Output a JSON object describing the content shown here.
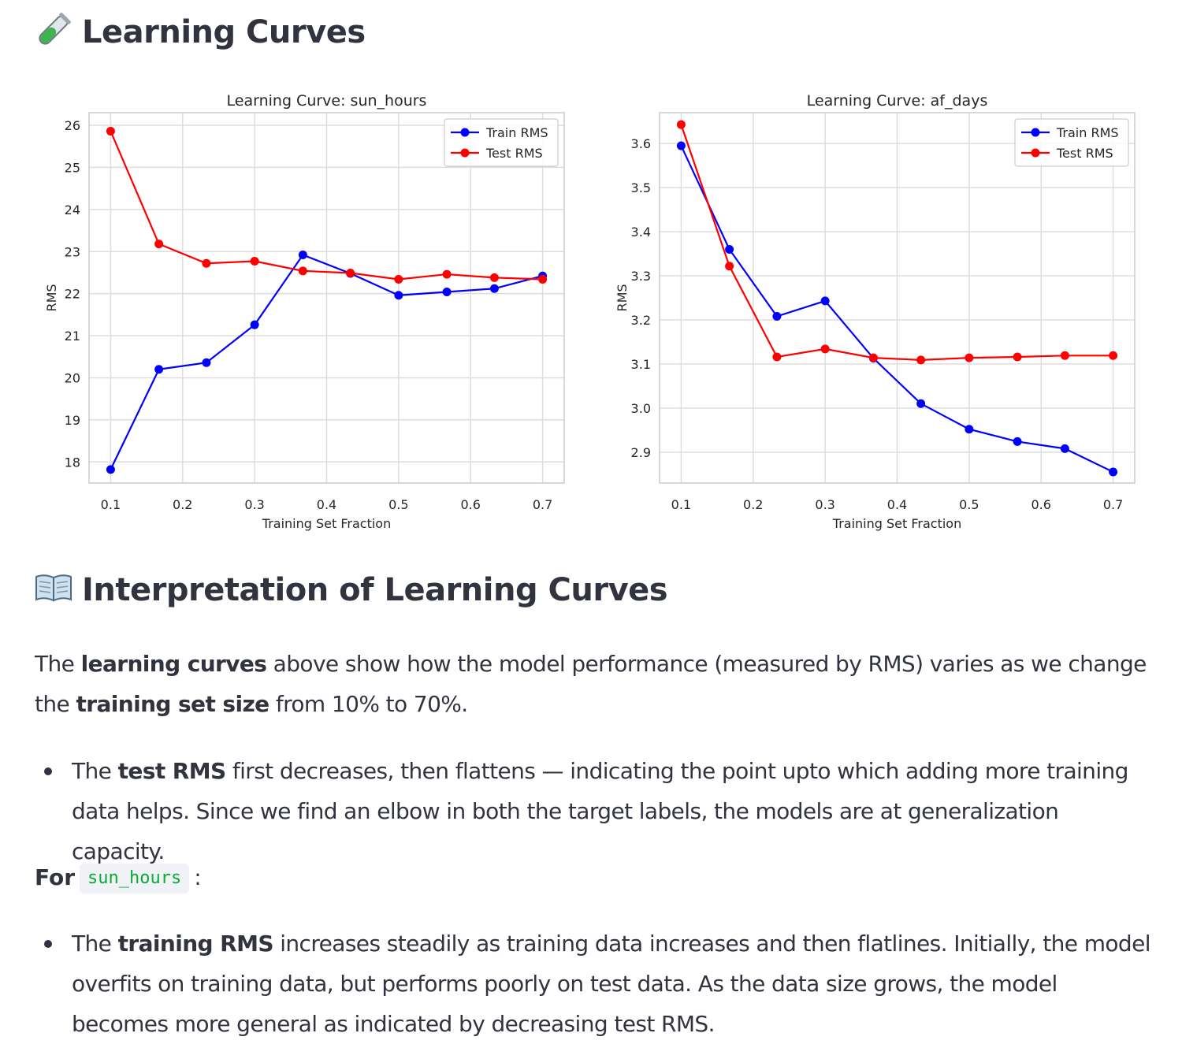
{
  "header": {
    "title": "Learning Curves",
    "title_icon": "test-tube-icon"
  },
  "chart_data": [
    {
      "type": "line",
      "title": "Learning Curve: sun_hours",
      "xlabel": "Training Set Fraction",
      "ylabel": "RMS",
      "xlim": [
        0.07,
        0.73
      ],
      "ylim": [
        17.5,
        26.3
      ],
      "xticks": [
        0.1,
        0.2,
        0.3,
        0.4,
        0.5,
        0.6,
        0.7
      ],
      "xtick_labels": [
        "0.1",
        "0.2",
        "0.3",
        "0.4",
        "0.5",
        "0.6",
        "0.7"
      ],
      "yticks": [
        18,
        19,
        20,
        21,
        22,
        23,
        24,
        25,
        26
      ],
      "ytick_labels": [
        "18",
        "19",
        "20",
        "21",
        "22",
        "23",
        "24",
        "25",
        "26"
      ],
      "grid": true,
      "legend": "top-right",
      "x": [
        0.1,
        0.167,
        0.233,
        0.3,
        0.367,
        0.433,
        0.5,
        0.567,
        0.633,
        0.7
      ],
      "series": [
        {
          "name": "Train RMS",
          "color": "#0000ff",
          "values": [
            17.82,
            20.2,
            20.36,
            21.26,
            22.92,
            22.48,
            21.96,
            22.04,
            22.12,
            22.42
          ]
        },
        {
          "name": "Test RMS",
          "color": "#ff0000",
          "values": [
            25.86,
            23.18,
            22.72,
            22.77,
            22.54,
            22.49,
            22.34,
            22.46,
            22.38,
            22.34
          ]
        }
      ]
    },
    {
      "type": "line",
      "title": "Learning Curve: af_days",
      "xlabel": "Training Set Fraction",
      "ylabel": "RMS",
      "xlim": [
        0.07,
        0.73
      ],
      "ylim": [
        2.83,
        3.67
      ],
      "xticks": [
        0.1,
        0.2,
        0.3,
        0.4,
        0.5,
        0.6,
        0.7
      ],
      "xtick_labels": [
        "0.1",
        "0.2",
        "0.3",
        "0.4",
        "0.5",
        "0.6",
        "0.7"
      ],
      "yticks": [
        2.9,
        3.0,
        3.1,
        3.2,
        3.3,
        3.4,
        3.5,
        3.6
      ],
      "ytick_labels": [
        "2.9",
        "3.0",
        "3.1",
        "3.2",
        "3.3",
        "3.4",
        "3.5",
        "3.6"
      ],
      "grid": true,
      "legend": "top-right",
      "x": [
        0.1,
        0.167,
        0.233,
        0.3,
        0.367,
        0.433,
        0.5,
        0.567,
        0.633,
        0.7
      ],
      "series": [
        {
          "name": "Train RMS",
          "color": "#0000ff",
          "values": [
            3.595,
            3.36,
            3.208,
            3.243,
            3.113,
            3.01,
            2.952,
            2.924,
            2.908,
            2.855
          ]
        },
        {
          "name": "Test RMS",
          "color": "#ff0000",
          "values": [
            3.643,
            3.322,
            3.116,
            3.134,
            3.114,
            3.109,
            3.114,
            3.116,
            3.119,
            3.119
          ]
        }
      ]
    }
  ],
  "interpretation": {
    "title": "Interpretation of Learning Curves",
    "title_icon": "open-book-icon",
    "p1_a": "The ",
    "p1_b": "learning curves",
    "p1_c": " above show how the model performance (measured by RMS) varies as we change the ",
    "p1_d": "training set size",
    "p1_e": " from 10% to 70%.",
    "b1_a": "The ",
    "b1_b": "test RMS",
    "b1_c": " first decreases, then flattens — indicating the point upto which adding more training data helps. Since we find an elbow in both the target labels, the models are at generalization capacity.",
    "for_label": "For",
    "for_code": "sun_hours",
    "for_colon": ":",
    "b2_a": "The ",
    "b2_b": "training RMS",
    "b2_c": " increases steadily as training data increases and then flatlines. Initially, the model overfits on training data, but performs poorly on test data. As the data size grows, the model becomes more general as indicated by decreasing test RMS."
  }
}
